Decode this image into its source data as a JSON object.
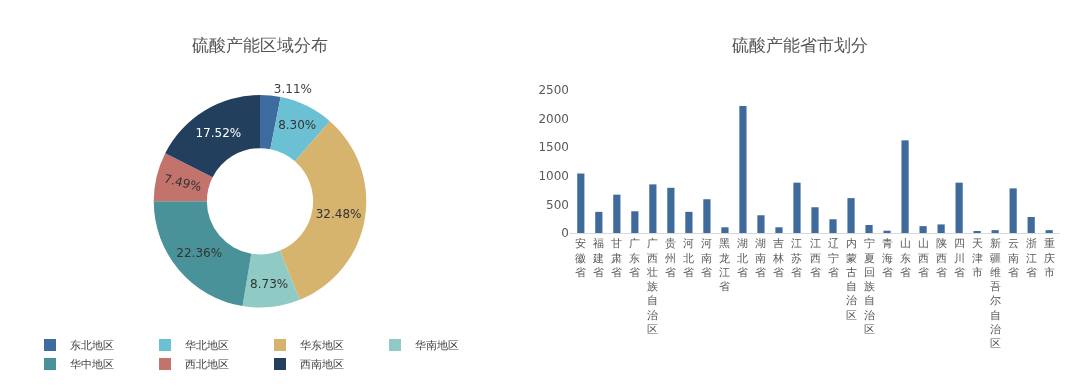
{
  "chart_data": [
    {
      "type": "donut",
      "title": "硫酸产能区域分布",
      "categories": [
        "东北地区",
        "华北地区",
        "华东地区",
        "华南地区",
        "华中地区",
        "西北地区",
        "西南地区"
      ],
      "values": [
        3.11,
        8.3,
        32.48,
        8.73,
        22.36,
        7.49,
        17.52
      ],
      "value_labels": [
        "3.11%",
        "8.30%",
        "32.48%",
        "8.73%",
        "22.36%",
        "7.49%",
        "17.52%"
      ],
      "colors": [
        "#3d6c9e",
        "#6bc0d3",
        "#d7b46e",
        "#8fcac4",
        "#4a929a",
        "#c2736c",
        "#22405e"
      ],
      "legend": "bottom"
    },
    {
      "type": "bar",
      "title": "硫酸产能省市划分",
      "categories": [
        "安徽省",
        "福建省",
        "甘肃省",
        "广东省",
        "广西壮族自治区",
        "贵州省",
        "河北省",
        "河南省",
        "黑龙江省",
        "湖北省",
        "湖南省",
        "吉林省",
        "江苏省",
        "江西省",
        "辽宁省",
        "内蒙古自治区",
        "宁夏回族自治区",
        "青海省",
        "山东省",
        "山西省",
        "陕西省",
        "四川省",
        "天津市",
        "新疆维吾尔自治区",
        "云南省",
        "浙江省",
        "重庆市"
      ],
      "values": [
        1040,
        370,
        670,
        380,
        850,
        790,
        370,
        590,
        100,
        2220,
        310,
        100,
        880,
        450,
        240,
        610,
        140,
        40,
        1620,
        120,
        150,
        880,
        20,
        50,
        780,
        280,
        50
      ],
      "color": "#3e6b9b",
      "ylim": [
        0,
        2500
      ],
      "yticks": [
        0,
        500,
        1000,
        1500,
        2000,
        2500
      ],
      "grid": false
    }
  ]
}
